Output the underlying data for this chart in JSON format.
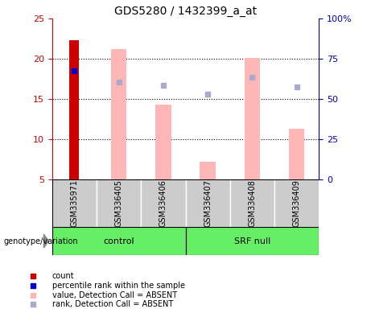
{
  "title": "GDS5280 / 1432399_a_at",
  "samples": [
    "GSM335971",
    "GSM336405",
    "GSM336406",
    "GSM336407",
    "GSM336408",
    "GSM336409"
  ],
  "bar_bottom": 5,
  "ylim": [
    5,
    25
  ],
  "y2lim": [
    0,
    100
  ],
  "yticks": [
    5,
    10,
    15,
    20,
    25
  ],
  "y2ticks": [
    0,
    25,
    50,
    75,
    100
  ],
  "y2ticklabels": [
    "0",
    "25",
    "50",
    "75",
    "100%"
  ],
  "count_values": [
    22.3,
    null,
    null,
    null,
    null,
    null
  ],
  "count_color": "#cc0000",
  "percentile_values": [
    18.5,
    null,
    null,
    null,
    null,
    null
  ],
  "percentile_color": "#0000cc",
  "absent_value_bars": [
    null,
    21.2,
    14.3,
    7.2,
    20.1,
    11.3
  ],
  "absent_value_color": "#ffb6b6",
  "absent_rank_dots": [
    null,
    17.1,
    16.7,
    15.6,
    17.7,
    16.5
  ],
  "absent_rank_color": "#aaaacc",
  "bar_width": 0.35,
  "legend_items": [
    {
      "label": "count",
      "color": "#cc0000"
    },
    {
      "label": "percentile rank within the sample",
      "color": "#0000cc"
    },
    {
      "label": "value, Detection Call = ABSENT",
      "color": "#ffb6b6"
    },
    {
      "label": "rank, Detection Call = ABSENT",
      "color": "#aaaacc"
    }
  ],
  "ylabel_color": "#cc0000",
  "y2label_color": "#0000bb",
  "tick_label_gray_bg": "#cccccc",
  "genotype_label": "genotype/variation",
  "group_green": "#66ee66",
  "group_border": "#000000"
}
